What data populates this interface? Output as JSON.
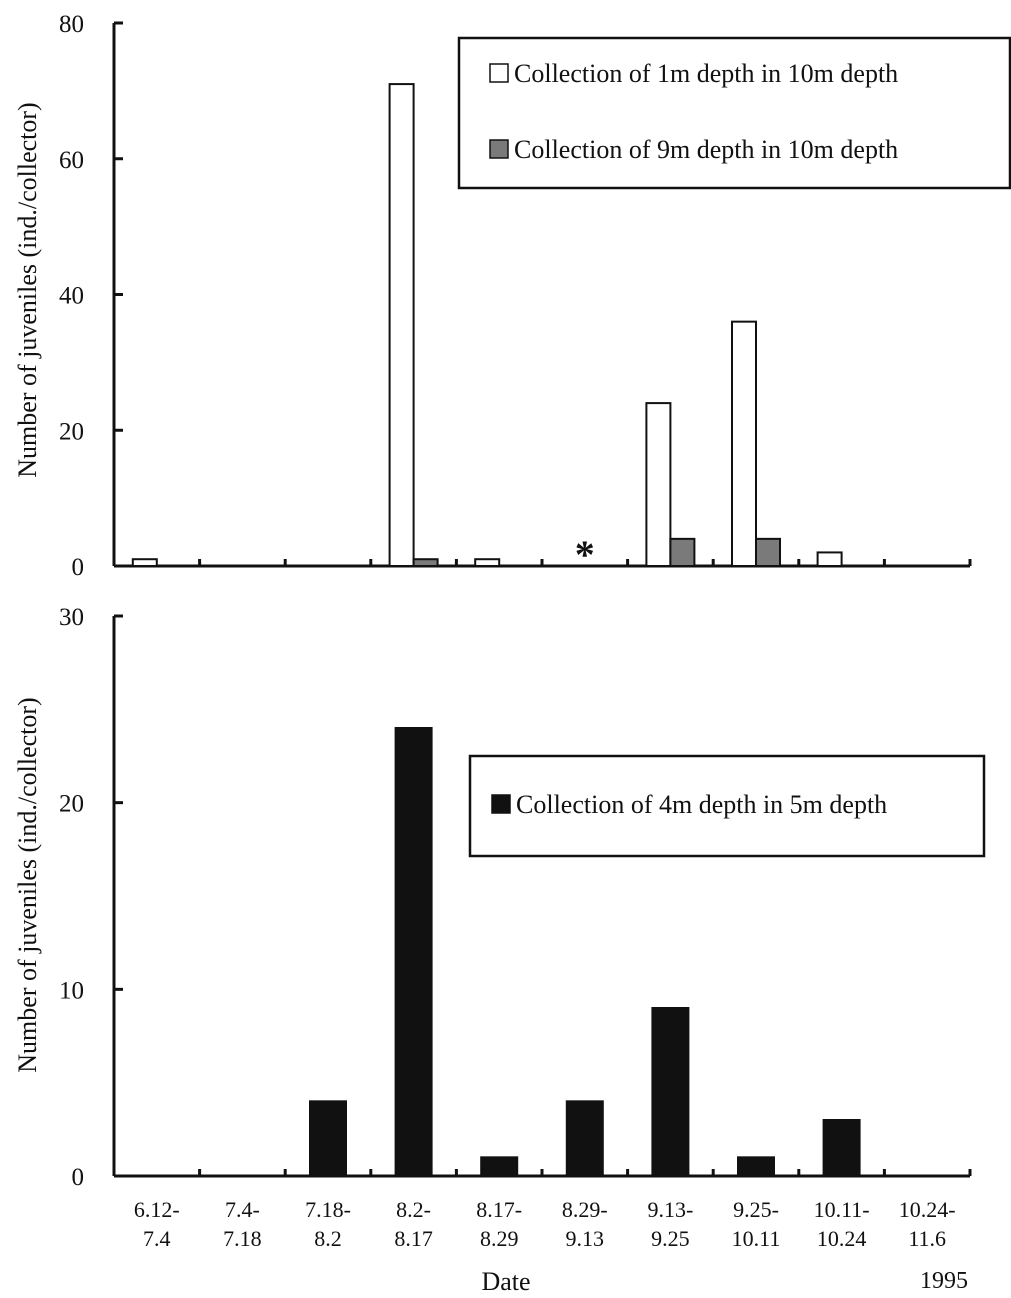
{
  "chart_data": [
    {
      "type": "bar",
      "categories": [
        "6.12-7.4",
        "7.4-7.18",
        "7.18-8.2",
        "8.2-8.17",
        "8.17-8.29",
        "8.29-9.13",
        "9.13-9.25",
        "9.25-10.11",
        "10.11-10.24",
        "10.24-11.6"
      ],
      "series": [
        {
          "name": "Collection of 1m depth in 10m depth",
          "color": "#ffffff",
          "values": [
            1,
            0,
            0,
            71,
            1,
            0,
            24,
            36,
            2,
            0
          ]
        },
        {
          "name": "Collection of 9m depth in 10m depth",
          "color": "#7a7a7a",
          "values": [
            0,
            0,
            0,
            1,
            0,
            0,
            4,
            4,
            0,
            0
          ]
        }
      ],
      "ylabel": "Number of juveniles (ind./collector)",
      "ylim": [
        0,
        80
      ],
      "yticks": [
        0,
        20,
        40,
        60,
        80
      ],
      "legend_position": "top-right",
      "annotations": [
        {
          "text": "*",
          "category": "8.29-9.13"
        }
      ]
    },
    {
      "type": "bar",
      "categories": [
        "6.12-7.4",
        "7.4-7.18",
        "7.18-8.2",
        "8.2-8.17",
        "8.17-8.29",
        "8.29-9.13",
        "9.13-9.25",
        "9.25-10.11",
        "10.11-10.24",
        "10.24-11.6"
      ],
      "category_lines": [
        [
          "6.12-",
          "7.4"
        ],
        [
          "7.4-",
          "7.18"
        ],
        [
          "7.18-",
          "8.2"
        ],
        [
          "8.2-",
          "8.17"
        ],
        [
          "8.17-",
          "8.29"
        ],
        [
          "8.29-",
          "9.13"
        ],
        [
          "9.13-",
          "9.25"
        ],
        [
          "9.25-",
          "10.11"
        ],
        [
          "10.11-",
          "10.24"
        ],
        [
          "10.24-",
          "11.6"
        ]
      ],
      "series": [
        {
          "name": "Collection of 4m depth in 5m depth",
          "color": "#111111",
          "values": [
            0,
            0,
            4,
            24,
            1,
            4,
            9,
            1,
            3,
            0
          ]
        }
      ],
      "xlabel": "Date",
      "ylabel": "Number of juveniles (ind./collector)",
      "ylim": [
        0,
        30
      ],
      "yticks": [
        0,
        10,
        20,
        30
      ],
      "legend_position": "upper-right",
      "year": "1995"
    }
  ]
}
